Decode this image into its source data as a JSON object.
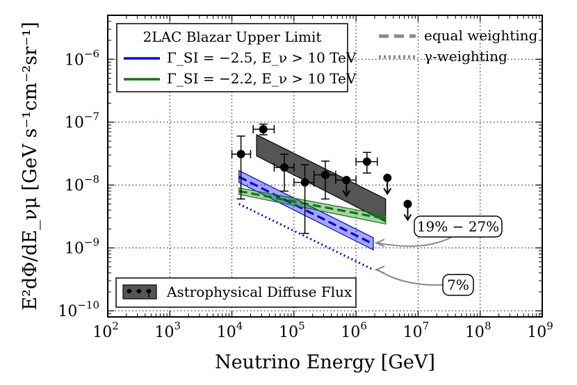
{
  "chart_data": {
    "type": "scatter",
    "xlabel": "Neutrino Energy [GeV]",
    "ylabel": "E²dΦ/dE_νμ [GeV s⁻¹cm⁻²sr⁻¹]",
    "xscale": "log",
    "yscale": "log",
    "xlim": [
      100,
      1000000000
    ],
    "ylim": [
      8e-11,
      5e-06
    ],
    "grid": true,
    "x_ticks": [
      {
        "base": "10",
        "exp": "2",
        "value": 100
      },
      {
        "base": "10",
        "exp": "3",
        "value": 1000
      },
      {
        "base": "10",
        "exp": "4",
        "value": 10000
      },
      {
        "base": "10",
        "exp": "5",
        "value": 100000
      },
      {
        "base": "10",
        "exp": "6",
        "value": 1000000
      },
      {
        "base": "10",
        "exp": "7",
        "value": 10000000
      },
      {
        "base": "10",
        "exp": "8",
        "value": 100000000
      },
      {
        "base": "10",
        "exp": "9",
        "value": 1000000000
      }
    ],
    "y_ticks": [
      {
        "base": "10",
        "exp": "−10",
        "value": 1e-10
      },
      {
        "base": "10",
        "exp": "−9",
        "value": 1e-09
      },
      {
        "base": "10",
        "exp": "−8",
        "value": 1e-08
      },
      {
        "base": "10",
        "exp": "−7",
        "value": 1e-07
      },
      {
        "base": "10",
        "exp": "−6",
        "value": 1e-06
      }
    ],
    "legend": {
      "title": "2LAC Blazar Upper Limit",
      "placement": "top-left",
      "entries": [
        {
          "series": "Γ_SI = −2.5, E_ν > 10 TeV",
          "color": "#0000ee"
        },
        {
          "series": "Γ_SI = −2.2, E_ν > 10 TeV",
          "color": "#0a7a0a"
        }
      ]
    },
    "legend_style": {
      "placement": "top-right",
      "entries": [
        {
          "label": "equal weighting",
          "style": "dashed"
        },
        {
          "label": "γ-weighting",
          "style": "dotted"
        }
      ]
    },
    "legend_flux": {
      "label": "Astrophysical Diffuse Flux",
      "placement": "bottom-left"
    },
    "annotations": [
      {
        "text": "19% − 27%",
        "points_to": [
          1900000,
          1.2e-09
        ]
      },
      {
        "text": "7%",
        "points_to": [
          1900000,
          4.5e-10
        ]
      }
    ],
    "series": [
      {
        "name": "Astrophysical Diffuse Flux",
        "kind": "points",
        "color": "#000000",
        "points": [
          {
            "x": 14000,
            "y": 3.1e-08,
            "xlo": 10000,
            "xhi": 20000,
            "ylo": 6e-09,
            "yhi": 6e-08
          },
          {
            "x": 32000,
            "y": 7.7e-08,
            "xlo": 22000,
            "xhi": 48000,
            "ylo": 6.3e-08,
            "yhi": 9.3e-08
          },
          {
            "x": 70000,
            "y": 1.9e-08,
            "xlo": 48000,
            "xhi": 100000,
            "ylo": 8e-09,
            "yhi": 3.1e-08
          },
          {
            "x": 150000,
            "y": 1.1e-08,
            "xlo": 100000,
            "xhi": 210000,
            "ylo": 1.7e-09,
            "yhi": 2.1e-08
          },
          {
            "x": 320000,
            "y": 1.45e-08,
            "xlo": 210000,
            "xhi": 470000,
            "ylo": 6e-09,
            "yhi": 2.4e-08
          },
          {
            "x": 700000,
            "y": 1.2e-08,
            "xlo": 470000,
            "xhi": 1000000,
            "upper_limit": true
          },
          {
            "x": 1500000,
            "y": 2.35e-08,
            "xlo": 1000000,
            "xhi": 2200000,
            "ylo": 1.55e-08,
            "yhi": 3.3e-08
          },
          {
            "x": 3200000,
            "y": 1.3e-08,
            "upper_limit": true
          },
          {
            "x": 6800000,
            "y": 5e-09,
            "upper_limit": true
          }
        ]
      },
      {
        "name": "Astrophysical Diffuse Flux",
        "kind": "band",
        "color": "#555555",
        "x": [
          25000,
          3000000
        ],
        "upper": [
          6.3e-08,
          6e-09
        ],
        "lower": [
          2.9e-08,
          2.6e-09
        ]
      },
      {
        "name": "Γ_SI = −2.5, E_ν > 10 TeV",
        "kind": "band",
        "style": "equal weighting",
        "color": "#0000ee",
        "x": [
          13000,
          1900000
        ],
        "upper": [
          1.7e-08,
          1.45e-09
        ],
        "center": [
          1.35e-08,
          1.15e-09
        ],
        "lower": [
          1.1e-08,
          9.3e-10
        ]
      },
      {
        "name": "Γ_SI = −2.5, E_ν > 10 TeV",
        "kind": "line",
        "style": "γ-weighting",
        "color": "#0000ee",
        "x": [
          13000,
          1900000
        ],
        "y": [
          5e-09,
          4.5e-10
        ]
      },
      {
        "name": "Γ_SI = −2.2, E_ν > 10 TeV",
        "kind": "band",
        "style": "equal weighting",
        "color": "#0a7a0a",
        "x": [
          13000,
          3000000
        ],
        "upper": [
          9e-09,
          3.3e-09
        ],
        "center": [
          8e-09,
          2.9e-09
        ],
        "lower": [
          7.1e-09,
          2.4e-09
        ]
      }
    ]
  }
}
